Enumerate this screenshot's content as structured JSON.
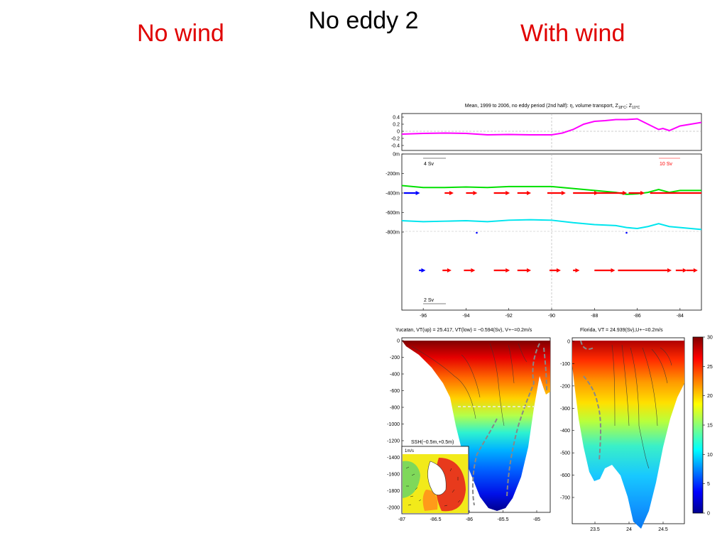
{
  "slide": {
    "title": "No eddy 2",
    "left_label": "No wind",
    "right_label": "With wind"
  },
  "colors": {
    "label_red": "#e00000",
    "ssh_line": "#ff00ff",
    "z18_line": "#00e000",
    "z10_line": "#00e5ee",
    "arrow_red": "#ff0000",
    "arrow_blue": "#0000ff"
  },
  "chart_data": [
    {
      "type": "line",
      "title": "Mean, 1999 to 2006, no eddy period (2nd half): η, volume transport, Z18°C, Z10°C",
      "panel": "ssh",
      "ylim": [
        -0.5,
        0.5
      ],
      "yticks": [
        "0.4",
        "0.2",
        "0",
        "-0.2",
        "-0.4"
      ],
      "series": [
        {
          "name": "η",
          "x": [
            -97,
            -96,
            -95,
            -94,
            -93,
            -92,
            -91,
            -90,
            -89.5,
            -89,
            -88.5,
            -88,
            -87.5,
            -87,
            -86.5,
            -86,
            -85.5,
            -85,
            -84.8,
            -84.5,
            -84,
            -83.5,
            -83
          ],
          "y": [
            -0.08,
            -0.06,
            -0.05,
            -0.06,
            -0.1,
            -0.09,
            -0.1,
            -0.1,
            -0.05,
            0.05,
            0.2,
            0.28,
            0.3,
            0.33,
            0.33,
            0.35,
            0.2,
            0.05,
            0.08,
            0.02,
            0.15,
            0.2,
            0.25
          ]
        }
      ]
    },
    {
      "type": "line",
      "panel": "depth_transport",
      "yticks": [
        "0m",
        "-200m",
        "-400m",
        "-600m",
        "-800m"
      ],
      "xticks": [
        "-96",
        "-94",
        "-92",
        "-90",
        "-88",
        "-86",
        "-84"
      ],
      "xlim": [
        -97,
        -83
      ],
      "annotations": [
        "4 Sv",
        "10 Sv",
        "2 Sv"
      ],
      "series": [
        {
          "name": "Z18°C",
          "x": [
            -97,
            -96,
            -95,
            -94,
            -93,
            -92,
            -91,
            -90,
            -89,
            -88,
            -87,
            -86.5,
            -86,
            -85.5,
            -85,
            -84.5,
            -84,
            -83
          ],
          "y": [
            -200,
            -220,
            -220,
            -215,
            -220,
            -210,
            -210,
            -210,
            -230,
            -250,
            -270,
            -290,
            -285,
            -270,
            -240,
            -270,
            -250,
            -250
          ]
        },
        {
          "name": "Z10°C",
          "x": [
            -97,
            -96,
            -95,
            -94,
            -93,
            -92,
            -91,
            -90,
            -89,
            -88,
            -87,
            -86.5,
            -86,
            -85.5,
            -85,
            -84.5,
            -84,
            -83
          ],
          "y": [
            -560,
            -570,
            -565,
            -560,
            -570,
            -555,
            -550,
            -555,
            -580,
            -600,
            -610,
            -630,
            -640,
            -620,
            -590,
            -620,
            -630,
            -650
          ]
        }
      ],
      "arrows_upper": [
        {
          "x": -96.9,
          "len": 0.5,
          "color": "blue"
        },
        {
          "x": -95.0,
          "len": 0.2,
          "color": "red"
        },
        {
          "x": -94.0,
          "len": 0.3,
          "color": "red"
        },
        {
          "x": -92.7,
          "len": 0.5,
          "color": "red"
        },
        {
          "x": -91.6,
          "len": 0.4,
          "color": "red"
        },
        {
          "x": -90.2,
          "len": 0.6,
          "color": "red"
        },
        {
          "x": -89.0,
          "len": 0.9,
          "color": "red"
        },
        {
          "x": -88.0,
          "len": 1.2,
          "color": "red"
        },
        {
          "x": -86.4,
          "len": 0.5,
          "color": "red"
        },
        {
          "x": -85.4,
          "len": 2.4,
          "color": "red"
        }
      ],
      "arrows_lower": [
        {
          "x": -96.2,
          "len": 0.1,
          "color": "blue"
        },
        {
          "x": -95.1,
          "len": 0.2,
          "color": "red"
        },
        {
          "x": -94.1,
          "len": 0.3,
          "color": "red"
        },
        {
          "x": -92.7,
          "len": 0.5,
          "color": "red"
        },
        {
          "x": -91.6,
          "len": 0.4,
          "color": "red"
        },
        {
          "x": -90.1,
          "len": 0.3,
          "color": "red"
        },
        {
          "x": -89.0,
          "len": 0.1,
          "color": "red"
        },
        {
          "x": -88.0,
          "len": 0.7,
          "color": "red"
        },
        {
          "x": -86.9,
          "len": 2.1,
          "color": "red"
        },
        {
          "x": -84.2,
          "len": 0.3,
          "color": "red"
        },
        {
          "x": -83.7,
          "len": 0.3,
          "color": "red"
        }
      ]
    },
    {
      "type": "heatmap",
      "title": "Yucatan, VT(up) = 25.417, VT(low) = −0.594(Sv), V+−=0.2m/s",
      "ylim": [
        -2100,
        0
      ],
      "yticks": [
        "0",
        "-200",
        "-400",
        "-600",
        "-800",
        "-1000",
        "-1200",
        "-1400",
        "-1600",
        "-1800",
        "-2000"
      ],
      "xticks": [
        "-87",
        "-86.5",
        "-86",
        "-85.5",
        "-85"
      ],
      "inset_labels": [
        "SSH(−0.5m,+0.5m)",
        "1m/s"
      ]
    },
    {
      "type": "heatmap",
      "title": "Florida, VT = 24.939(Sv),U+−=0.2m/s",
      "yticks": [
        "0",
        "-100",
        "-200",
        "-300",
        "-400",
        "-500",
        "-600",
        "-700"
      ],
      "xticks": [
        "23.5",
        "24",
        "24.5"
      ]
    },
    {
      "type": "heatmap",
      "panel": "colorbar",
      "range": [
        0,
        30
      ],
      "ticks": [
        "30",
        "25",
        "20",
        "15",
        "10",
        "5",
        "0"
      ]
    }
  ]
}
